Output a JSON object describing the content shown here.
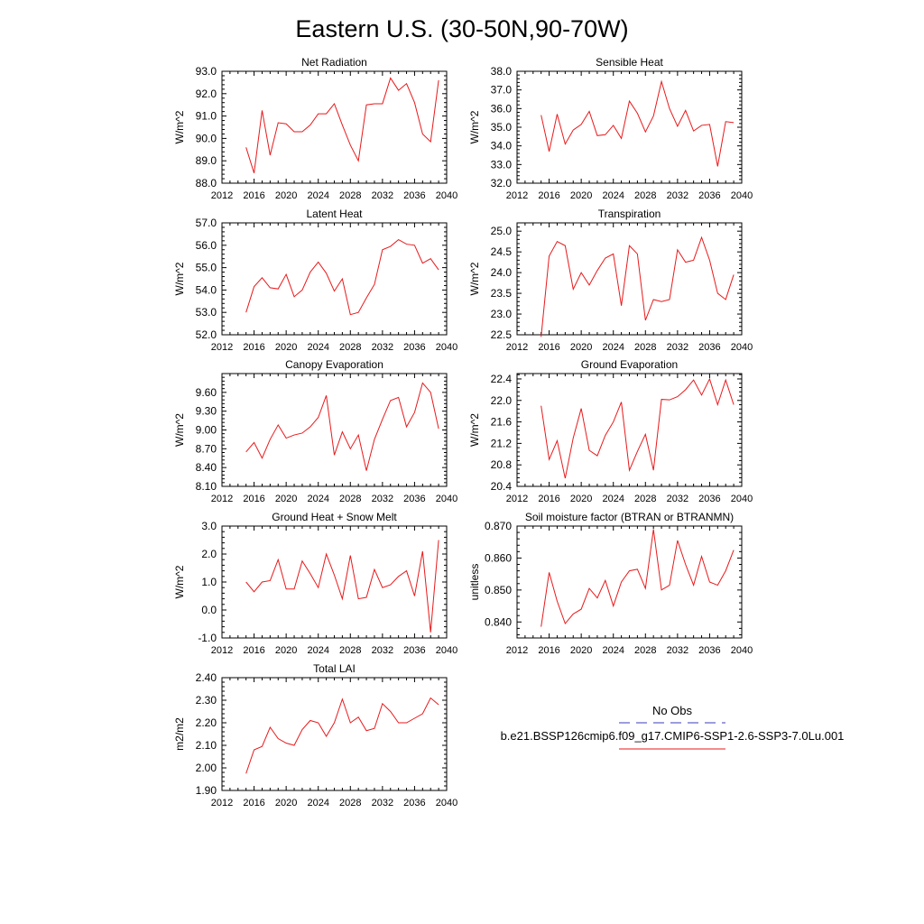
{
  "figure": {
    "title": "Eastern U.S. (30-50N,90-70W)"
  },
  "legend": {
    "items": [
      {
        "label": "No Obs",
        "color": "#3b3bb8",
        "dash": true
      },
      {
        "label": "b.e21.BSSP126cmip6.f09_g17.CMIP6-SSP1-2.6-SSP3-7.0Lu.001",
        "color": "#e8191b",
        "dash": false
      }
    ]
  },
  "chart_data": [
    {
      "type": "line",
      "title": "Net Radiation",
      "ylabel": "W/m^2",
      "xlim": [
        2012,
        2040
      ],
      "ylim": [
        88.0,
        93.0
      ],
      "x_ticks": [
        "2012",
        "2016",
        "2020",
        "2024",
        "2028",
        "2032",
        "2036",
        "2040"
      ],
      "y_ticks": [
        "88.0",
        "89.0",
        "90.0",
        "91.0",
        "92.0",
        "93.0"
      ],
      "series": [
        {
          "color": "#e8191b",
          "x": [
            2015,
            2016,
            2017,
            2018,
            2019,
            2020,
            2021,
            2022,
            2023,
            2024,
            2025,
            2026,
            2027,
            2028,
            2029,
            2030,
            2031,
            2032,
            2033,
            2034,
            2035,
            2036,
            2037,
            2038,
            2039
          ],
          "values": [
            89.6,
            88.45,
            91.25,
            89.25,
            90.7,
            90.65,
            90.3,
            90.3,
            90.6,
            91.1,
            91.1,
            91.55,
            90.6,
            89.7,
            89.0,
            91.5,
            91.55,
            91.55,
            92.7,
            92.15,
            92.45,
            91.6,
            90.2,
            89.85,
            92.6
          ]
        }
      ]
    },
    {
      "type": "line",
      "title": "Sensible Heat",
      "ylabel": "W/m^2",
      "xlim": [
        2012,
        2040
      ],
      "ylim": [
        32.0,
        38.0
      ],
      "x_ticks": [
        "2012",
        "2016",
        "2020",
        "2024",
        "2028",
        "2032",
        "2036",
        "2040"
      ],
      "y_ticks": [
        "32.0",
        "33.0",
        "34.0",
        "35.0",
        "36.0",
        "37.0",
        "38.0"
      ],
      "series": [
        {
          "color": "#e8191b",
          "x": [
            2015,
            2016,
            2017,
            2018,
            2019,
            2020,
            2021,
            2022,
            2023,
            2024,
            2025,
            2026,
            2027,
            2028,
            2029,
            2030,
            2031,
            2032,
            2033,
            2034,
            2035,
            2036,
            2037,
            2038,
            2039
          ],
          "values": [
            35.65,
            33.7,
            35.7,
            34.1,
            34.85,
            35.15,
            35.85,
            34.55,
            34.6,
            35.1,
            34.4,
            36.4,
            35.75,
            34.75,
            35.6,
            37.45,
            36.0,
            35.05,
            35.9,
            34.8,
            35.1,
            35.15,
            32.9,
            35.3,
            35.25
          ]
        }
      ]
    },
    {
      "type": "line",
      "title": "Latent Heat",
      "ylabel": "W/m^2",
      "xlim": [
        2012,
        2040
      ],
      "ylim": [
        52.0,
        57.0
      ],
      "x_ticks": [
        "2012",
        "2016",
        "2020",
        "2024",
        "2028",
        "2032",
        "2036",
        "2040"
      ],
      "y_ticks": [
        "52.0",
        "53.0",
        "54.0",
        "55.0",
        "56.0",
        "57.0"
      ],
      "series": [
        {
          "color": "#e8191b",
          "x": [
            2015,
            2016,
            2017,
            2018,
            2019,
            2020,
            2021,
            2022,
            2023,
            2024,
            2025,
            2026,
            2027,
            2028,
            2029,
            2030,
            2031,
            2032,
            2033,
            2034,
            2035,
            2036,
            2037,
            2038,
            2039
          ],
          "values": [
            53.0,
            54.15,
            54.55,
            54.1,
            54.05,
            54.7,
            53.7,
            54.0,
            54.8,
            55.25,
            54.75,
            53.95,
            54.5,
            52.9,
            53.0,
            53.65,
            54.25,
            55.8,
            55.95,
            56.25,
            56.05,
            56.0,
            55.2,
            55.4,
            54.9
          ]
        }
      ]
    },
    {
      "type": "line",
      "title": "Transpiration",
      "ylabel": "W/m^2",
      "xlim": [
        2012,
        2040
      ],
      "ylim": [
        22.5,
        25.2
      ],
      "x_ticks": [
        "2012",
        "2016",
        "2020",
        "2024",
        "2028",
        "2032",
        "2036",
        "2040"
      ],
      "y_ticks": [
        "22.5",
        "23.0",
        "23.5",
        "24.0",
        "24.5",
        "25.0"
      ],
      "series": [
        {
          "color": "#e8191b",
          "x": [
            2015,
            2016,
            2017,
            2018,
            2019,
            2020,
            2021,
            2022,
            2023,
            2024,
            2025,
            2026,
            2027,
            2028,
            2029,
            2030,
            2031,
            2032,
            2033,
            2034,
            2035,
            2036,
            2037,
            2038,
            2039
          ],
          "values": [
            22.45,
            24.4,
            24.75,
            24.65,
            23.6,
            24.0,
            23.7,
            24.05,
            24.35,
            24.45,
            23.2,
            24.65,
            24.45,
            22.85,
            23.35,
            23.3,
            23.35,
            24.55,
            24.25,
            24.3,
            24.85,
            24.3,
            23.5,
            23.35,
            23.95
          ]
        }
      ]
    },
    {
      "type": "line",
      "title": "Canopy Evaporation",
      "ylabel": "W/m^2",
      "xlim": [
        2012,
        2040
      ],
      "ylim": [
        8.1,
        9.9
      ],
      "x_ticks": [
        "2012",
        "2016",
        "2020",
        "2024",
        "2028",
        "2032",
        "2036",
        "2040"
      ],
      "y_ticks": [
        "8.10",
        "8.40",
        "8.70",
        "9.00",
        "9.30",
        "9.60"
      ],
      "series": [
        {
          "color": "#e8191b",
          "x": [
            2015,
            2016,
            2017,
            2018,
            2019,
            2020,
            2021,
            2022,
            2023,
            2024,
            2025,
            2026,
            2027,
            2028,
            2029,
            2030,
            2031,
            2032,
            2033,
            2034,
            2035,
            2036,
            2037,
            2038,
            2039
          ],
          "values": [
            8.65,
            8.8,
            8.55,
            8.85,
            9.08,
            8.87,
            8.92,
            8.95,
            9.05,
            9.2,
            9.55,
            8.6,
            8.97,
            8.7,
            8.92,
            8.35,
            8.85,
            9.17,
            9.47,
            9.52,
            9.05,
            9.28,
            9.75,
            9.6,
            9.02
          ]
        }
      ]
    },
    {
      "type": "line",
      "title": "Ground Evaporation",
      "ylabel": "W/m^2",
      "xlim": [
        2012,
        2040
      ],
      "ylim": [
        20.4,
        22.5
      ],
      "x_ticks": [
        "2012",
        "2016",
        "2020",
        "2024",
        "2028",
        "2032",
        "2036",
        "2040"
      ],
      "y_ticks": [
        "20.4",
        "20.8",
        "21.2",
        "21.6",
        "22.0",
        "22.4"
      ],
      "series": [
        {
          "color": "#e8191b",
          "x": [
            2015,
            2016,
            2017,
            2018,
            2019,
            2020,
            2021,
            2022,
            2023,
            2024,
            2025,
            2026,
            2027,
            2028,
            2029,
            2030,
            2031,
            2032,
            2033,
            2034,
            2035,
            2036,
            2037,
            2038,
            2039
          ],
          "values": [
            21.9,
            20.9,
            21.25,
            20.55,
            21.3,
            21.85,
            21.07,
            20.97,
            21.35,
            21.6,
            21.97,
            20.7,
            21.05,
            21.37,
            20.7,
            22.02,
            22.01,
            22.07,
            22.2,
            22.38,
            22.1,
            22.4,
            21.92,
            22.38,
            21.92
          ]
        }
      ]
    },
    {
      "type": "line",
      "title": "Ground Heat + Snow Melt",
      "ylabel": "W/m^2",
      "xlim": [
        2012,
        2040
      ],
      "ylim": [
        -1.0,
        3.0
      ],
      "x_ticks": [
        "2012",
        "2016",
        "2020",
        "2024",
        "2028",
        "2032",
        "2036",
        "2040"
      ],
      "y_ticks": [
        "-1.0",
        "0.0",
        "1.0",
        "2.0",
        "3.0"
      ],
      "series": [
        {
          "color": "#e8191b",
          "x": [
            2015,
            2016,
            2017,
            2018,
            2019,
            2020,
            2021,
            2022,
            2023,
            2024,
            2025,
            2026,
            2027,
            2028,
            2029,
            2030,
            2031,
            2032,
            2033,
            2034,
            2035,
            2036,
            2037,
            2038,
            2039
          ],
          "values": [
            1.0,
            0.65,
            1.0,
            1.05,
            1.8,
            0.75,
            0.75,
            1.75,
            1.3,
            0.8,
            2.0,
            1.25,
            0.4,
            1.95,
            0.4,
            0.45,
            1.45,
            0.8,
            0.9,
            1.2,
            1.4,
            0.5,
            2.1,
            -0.8,
            2.5
          ]
        }
      ]
    },
    {
      "type": "line",
      "title": "Soil moisture factor (BTRAN or BTRANMN)",
      "ylabel": "unitless",
      "xlim": [
        2012,
        2040
      ],
      "ylim": [
        0.835,
        0.87
      ],
      "x_ticks": [
        "2012",
        "2016",
        "2020",
        "2024",
        "2028",
        "2032",
        "2036",
        "2040"
      ],
      "y_ticks": [
        "0.840",
        "0.850",
        "0.860",
        "0.870"
      ],
      "series": [
        {
          "color": "#e8191b",
          "x": [
            2015,
            2016,
            2017,
            2018,
            2019,
            2020,
            2021,
            2022,
            2023,
            2024,
            2025,
            2026,
            2027,
            2028,
            2029,
            2030,
            2031,
            2032,
            2033,
            2034,
            2035,
            2036,
            2037,
            2038,
            2039
          ],
          "values": [
            0.8385,
            0.8555,
            0.8465,
            0.8395,
            0.8425,
            0.844,
            0.8505,
            0.8475,
            0.853,
            0.845,
            0.8525,
            0.856,
            0.8565,
            0.8505,
            0.869,
            0.85,
            0.8515,
            0.8655,
            0.858,
            0.8515,
            0.8605,
            0.8525,
            0.8515,
            0.856,
            0.8625
          ]
        }
      ]
    },
    {
      "type": "line",
      "title": "Total LAI",
      "ylabel": "m2/m2",
      "xlim": [
        2012,
        2040
      ],
      "ylim": [
        1.9,
        2.4
      ],
      "x_ticks": [
        "2012",
        "2016",
        "2020",
        "2024",
        "2028",
        "2032",
        "2036",
        "2040"
      ],
      "y_ticks": [
        "1.90",
        "2.00",
        "2.10",
        "2.20",
        "2.30",
        "2.40"
      ],
      "series": [
        {
          "color": "#e8191b",
          "x": [
            2015,
            2016,
            2017,
            2018,
            2019,
            2020,
            2021,
            2022,
            2023,
            2024,
            2025,
            2026,
            2027,
            2028,
            2029,
            2030,
            2031,
            2032,
            2033,
            2034,
            2035,
            2036,
            2037,
            2038,
            2039
          ],
          "values": [
            1.975,
            2.08,
            2.095,
            2.18,
            2.13,
            2.11,
            2.1,
            2.17,
            2.21,
            2.2,
            2.14,
            2.2,
            2.305,
            2.2,
            2.225,
            2.165,
            2.175,
            2.285,
            2.25,
            2.2,
            2.2,
            2.22,
            2.24,
            2.31,
            2.28
          ]
        }
      ]
    }
  ]
}
